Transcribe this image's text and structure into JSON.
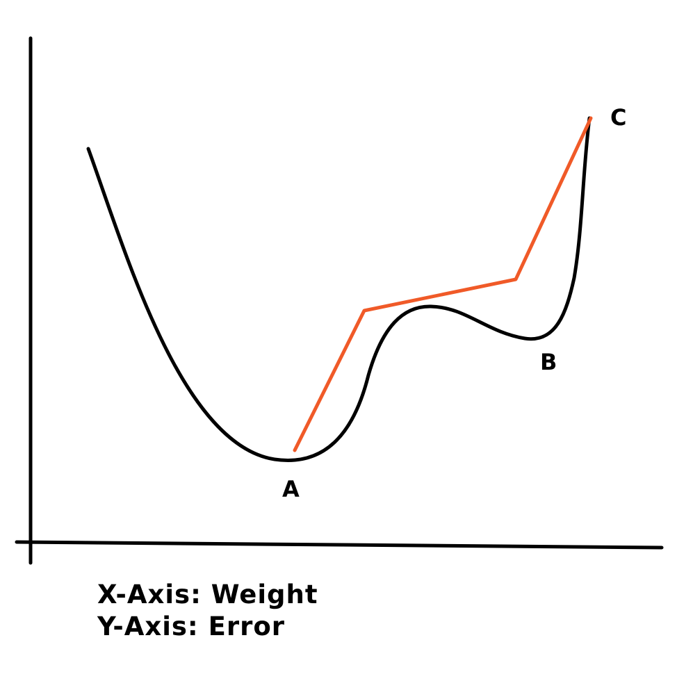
{
  "diagram": {
    "points": {
      "a": "A",
      "b": "B",
      "c": "C"
    },
    "legend": {
      "x_axis": "X-Axis: Weight",
      "y_axis": "Y-Axis: Error"
    },
    "colors": {
      "curve": "#000000",
      "path": "#f05a28",
      "axes": "#000000"
    }
  }
}
